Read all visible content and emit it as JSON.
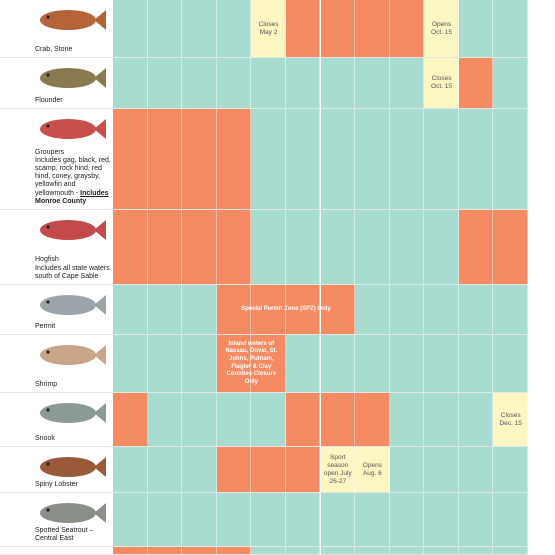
{
  "rows": [
    {
      "name": "Crab, Stone",
      "cells": [
        "t",
        "t",
        "t",
        "t",
        "y",
        "o",
        "o",
        "o",
        "o",
        "y",
        "t",
        "t"
      ],
      "notes": [
        {
          "col": 4,
          "span": 1,
          "text": "Closes May 2"
        },
        {
          "col": 9,
          "span": 1,
          "text": "Opens Oct. 15"
        }
      ]
    },
    {
      "name": "Flounder",
      "cells": [
        "t",
        "t",
        "t",
        "t",
        "t",
        "t",
        "t",
        "t",
        "t",
        "y",
        "o",
        "t"
      ],
      "notes": [
        {
          "col": 9,
          "span": 1,
          "text": "Closes Oct. 15"
        }
      ]
    },
    {
      "name": "Groupers",
      "desc": "Includes gag, black, red, scamp, rock hind, red hind, coney, graysby, yellowfin and yellowmouth - ",
      "emphasis": "Includes",
      "emphasis2": "Monroe County",
      "cells": [
        "o",
        "o",
        "o",
        "o",
        "t",
        "t",
        "t",
        "t",
        "t",
        "t",
        "t",
        "t"
      ],
      "notes": []
    },
    {
      "name": "Hogfish",
      "desc": "Includes all state waters south of Cape Sable",
      "cells": [
        "o",
        "o",
        "o",
        "o",
        "t",
        "t",
        "t",
        "t",
        "t",
        "t",
        "o",
        "o"
      ],
      "notes": []
    },
    {
      "name": "Permit",
      "cells": [
        "t",
        "t",
        "t",
        "o",
        "o",
        "o",
        "o",
        "t",
        "t",
        "t",
        "t",
        "t"
      ],
      "notes": [
        {
          "col": 3,
          "span": 4,
          "text": "Special Permit Zone (SPZ) Only"
        }
      ]
    },
    {
      "name": "Shrimp",
      "cells": [
        "t",
        "t",
        "t",
        "o",
        "o",
        "t",
        "t",
        "t",
        "t",
        "t",
        "t",
        "t"
      ],
      "notes": [
        {
          "col": 3,
          "span": 2,
          "text": "Inland waters of Nassau, Duval, St. Johns, Putnam, Flagler & Clay Counties Closure Only"
        }
      ]
    },
    {
      "name": "Snook",
      "cells": [
        "o",
        "t",
        "t",
        "t",
        "t",
        "o",
        "o",
        "o",
        "t",
        "t",
        "t",
        "y"
      ],
      "notes": [
        {
          "col": 11,
          "span": 1,
          "text": "Closes Dec. 15"
        }
      ]
    },
    {
      "name": "Spiny Lobster",
      "cells": [
        "t",
        "t",
        "t",
        "o",
        "o",
        "o",
        "y",
        "y",
        "t",
        "t",
        "t",
        "t"
      ],
      "notes": [
        {
          "col": 6,
          "span": 1,
          "text": "Sport season open July 26-27"
        },
        {
          "col": 7,
          "span": 1,
          "text": "Opens Aug. 6"
        }
      ]
    },
    {
      "name": "Spotted Seatrout – Central East",
      "cells": [
        "t",
        "t",
        "t",
        "t",
        "t",
        "t",
        "t",
        "t",
        "t",
        "t",
        "t",
        "t"
      ],
      "notes": []
    },
    {
      "cells": [
        "o",
        "o",
        "o",
        "o",
        "t",
        "t",
        "t",
        "t",
        "t",
        "t",
        "t",
        "t"
      ],
      "notes": []
    }
  ]
}
